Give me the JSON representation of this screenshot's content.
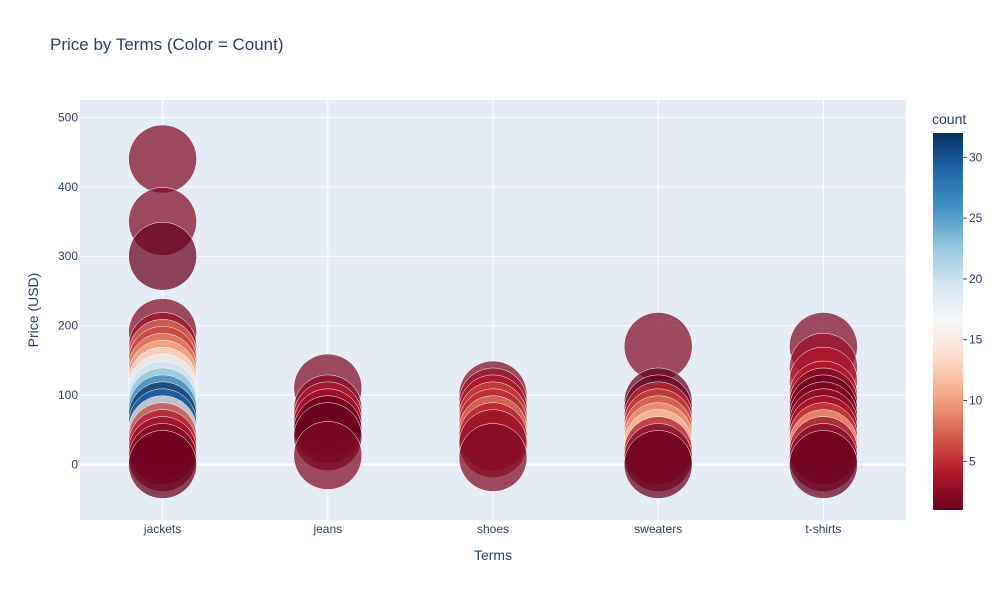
{
  "chart_data": {
    "type": "scatter",
    "title": "Price by Terms (Color = Count)",
    "xlabel": "Terms",
    "ylabel": "Price (USD)",
    "categories": [
      "jackets",
      "jeans",
      "shoes",
      "sweaters",
      "t-shirts"
    ],
    "ylim": [
      -80,
      525
    ],
    "y_ticks": [
      0,
      100,
      200,
      300,
      400,
      500
    ],
    "grid": true,
    "colorbar": {
      "title": "count",
      "range": [
        1,
        32
      ],
      "ticks": [
        5,
        10,
        15,
        20,
        25,
        30
      ],
      "colorscale": "RdBu"
    },
    "points": [
      {
        "x": "jackets",
        "y": 440,
        "count": 2
      },
      {
        "x": "jackets",
        "y": 350,
        "count": 2
      },
      {
        "x": "jackets",
        "y": 300,
        "count": 1
      },
      {
        "x": "jackets",
        "y": 190,
        "count": 2
      },
      {
        "x": "jackets",
        "y": 170,
        "count": 3
      },
      {
        "x": "jackets",
        "y": 160,
        "count": 8
      },
      {
        "x": "jackets",
        "y": 150,
        "count": 6
      },
      {
        "x": "jackets",
        "y": 140,
        "count": 9
      },
      {
        "x": "jackets",
        "y": 130,
        "count": 11
      },
      {
        "x": "jackets",
        "y": 120,
        "count": 14
      },
      {
        "x": "jackets",
        "y": 110,
        "count": 18
      },
      {
        "x": "jackets",
        "y": 100,
        "count": 20
      },
      {
        "x": "jackets",
        "y": 90,
        "count": 23
      },
      {
        "x": "jackets",
        "y": 80,
        "count": 27
      },
      {
        "x": "jackets",
        "y": 70,
        "count": 32
      },
      {
        "x": "jackets",
        "y": 60,
        "count": 29
      },
      {
        "x": "jackets",
        "y": 50,
        "count": 15
      },
      {
        "x": "jackets",
        "y": 40,
        "count": 6
      },
      {
        "x": "jackets",
        "y": 30,
        "count": 4
      },
      {
        "x": "jackets",
        "y": 20,
        "count": 3
      },
      {
        "x": "jackets",
        "y": 10,
        "count": 2
      },
      {
        "x": "jackets",
        "y": 0,
        "count": 1
      },
      {
        "x": "jeans",
        "y": 110,
        "count": 2
      },
      {
        "x": "jeans",
        "y": 80,
        "count": 2
      },
      {
        "x": "jeans",
        "y": 70,
        "count": 4
      },
      {
        "x": "jeans",
        "y": 60,
        "count": 3
      },
      {
        "x": "jeans",
        "y": 50,
        "count": 1
      },
      {
        "x": "jeans",
        "y": 40,
        "count": 1
      },
      {
        "x": "jeans",
        "y": 13,
        "count": 2
      },
      {
        "x": "shoes",
        "y": 100,
        "count": 2
      },
      {
        "x": "shoes",
        "y": 90,
        "count": 3
      },
      {
        "x": "shoes",
        "y": 80,
        "count": 4
      },
      {
        "x": "shoes",
        "y": 70,
        "count": 6
      },
      {
        "x": "shoes",
        "y": 60,
        "count": 5
      },
      {
        "x": "shoes",
        "y": 50,
        "count": 8
      },
      {
        "x": "shoes",
        "y": 40,
        "count": 4
      },
      {
        "x": "shoes",
        "y": 30,
        "count": 3
      },
      {
        "x": "shoes",
        "y": 10,
        "count": 2
      },
      {
        "x": "sweaters",
        "y": 170,
        "count": 2
      },
      {
        "x": "sweaters",
        "y": 90,
        "count": 1
      },
      {
        "x": "sweaters",
        "y": 80,
        "count": 1
      },
      {
        "x": "sweaters",
        "y": 70,
        "count": 5
      },
      {
        "x": "sweaters",
        "y": 60,
        "count": 6
      },
      {
        "x": "sweaters",
        "y": 50,
        "count": 8
      },
      {
        "x": "sweaters",
        "y": 40,
        "count": 10
      },
      {
        "x": "sweaters",
        "y": 30,
        "count": 12
      },
      {
        "x": "sweaters",
        "y": 20,
        "count": 4
      },
      {
        "x": "sweaters",
        "y": 10,
        "count": 2
      },
      {
        "x": "sweaters",
        "y": 0,
        "count": 1
      },
      {
        "x": "t-shirts",
        "y": 170,
        "count": 2
      },
      {
        "x": "t-shirts",
        "y": 140,
        "count": 3
      },
      {
        "x": "t-shirts",
        "y": 120,
        "count": 4
      },
      {
        "x": "t-shirts",
        "y": 100,
        "count": 4
      },
      {
        "x": "t-shirts",
        "y": 90,
        "count": 2
      },
      {
        "x": "t-shirts",
        "y": 80,
        "count": 1
      },
      {
        "x": "t-shirts",
        "y": 70,
        "count": 2
      },
      {
        "x": "t-shirts",
        "y": 60,
        "count": 3
      },
      {
        "x": "t-shirts",
        "y": 50,
        "count": 4
      },
      {
        "x": "t-shirts",
        "y": 40,
        "count": 6
      },
      {
        "x": "t-shirts",
        "y": 30,
        "count": 10
      },
      {
        "x": "t-shirts",
        "y": 20,
        "count": 3
      },
      {
        "x": "t-shirts",
        "y": 10,
        "count": 2
      },
      {
        "x": "t-shirts",
        "y": 0,
        "count": 1
      }
    ]
  }
}
